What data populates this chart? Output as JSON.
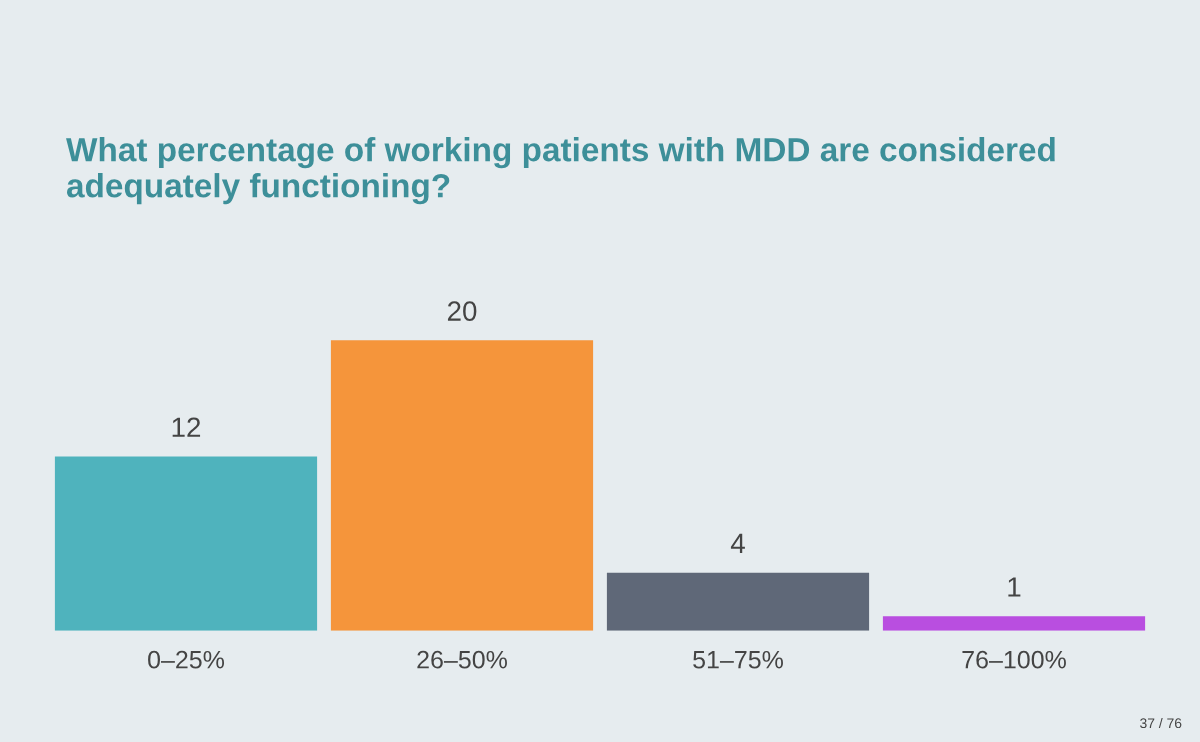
{
  "chart_data": {
    "type": "bar",
    "title": "What percentage of working patients with MDD are considered adequately functioning?",
    "categories": [
      "0–25%",
      "26–50%",
      "51–75%",
      "76–100%"
    ],
    "values": [
      12,
      20,
      4,
      1
    ],
    "colors": [
      "#4fb3bd",
      "#f5953b",
      "#5f6878",
      "#b94ee0"
    ],
    "data_labels": true,
    "annotations": [
      "37 / 76"
    ]
  }
}
